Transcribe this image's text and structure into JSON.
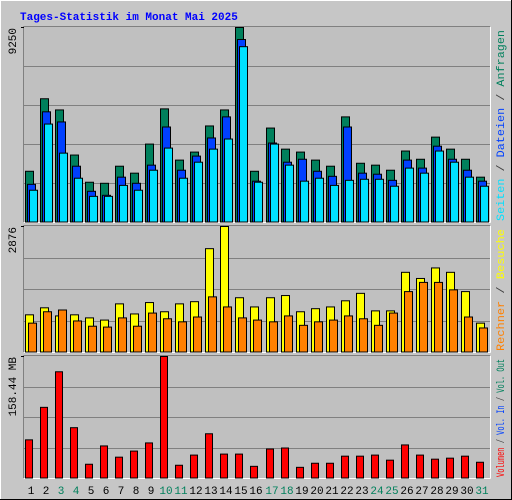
{
  "title": "Tages-Statistik im Monat Mai 2025",
  "legend_separator": " / ",
  "chart_data": [
    {
      "type": "bar",
      "ylim": [
        0,
        9250
      ],
      "yticks": [
        9250
      ],
      "grid_divisions": 5,
      "series": [
        {
          "name": "Anfragen",
          "color": "#00805c",
          "values": [
            2430,
            5870,
            5340,
            3200,
            1910,
            1860,
            2670,
            2340,
            3720,
            5390,
            2960,
            3340,
            4580,
            5340,
            9250,
            2430,
            4480,
            3480,
            3340,
            2960,
            2670,
            5010,
            2810,
            2720,
            2480,
            3390,
            3000,
            4050,
            3480,
            3000,
            2150
          ]
        },
        {
          "name": "Dateien",
          "color": "#0040ff",
          "values": [
            1810,
            5250,
            4770,
            2670,
            1480,
            1290,
            2150,
            1860,
            2720,
            4530,
            2480,
            3150,
            4010,
            5010,
            8680,
            1960,
            3770,
            2860,
            3000,
            2430,
            2190,
            4530,
            2340,
            2290,
            2000,
            2960,
            2580,
            3620,
            3000,
            2480,
            1960
          ]
        },
        {
          "name": "Seiten",
          "color": "#00e0ff",
          "values": [
            1530,
            4670,
            3290,
            2100,
            1240,
            1240,
            1760,
            1530,
            2480,
            3530,
            2100,
            2860,
            3480,
            3960,
            8340,
            1910,
            3720,
            2720,
            1960,
            2100,
            1760,
            2000,
            2050,
            2050,
            1720,
            2580,
            2340,
            3390,
            2860,
            2150,
            1720
          ]
        }
      ]
    },
    {
      "type": "bar",
      "ylim": [
        0,
        2876
      ],
      "yticks": [
        2876
      ],
      "grid_divisions": 4,
      "series": [
        {
          "name": "Besuche",
          "color": "#ffff00",
          "values": [
            860,
            1020,
            835,
            860,
            790,
            740,
            1110,
            880,
            1140,
            930,
            1110,
            1160,
            2370,
            2876,
            1250,
            1040,
            1250,
            1300,
            930,
            1000,
            1040,
            1180,
            1350,
            950,
            950,
            1830,
            1690,
            1930,
            1830,
            1390,
            670
          ]
        },
        {
          "name": "Rechner",
          "color": "#ff8000",
          "values": [
            670,
            930,
            970,
            720,
            600,
            580,
            790,
            600,
            900,
            770,
            700,
            810,
            1270,
            1040,
            790,
            740,
            700,
            835,
            620,
            700,
            740,
            835,
            770,
            620,
            900,
            1390,
            1600,
            1600,
            1430,
            810,
            560
          ]
        }
      ]
    },
    {
      "type": "bar",
      "ylim": [
        0,
        158.44
      ],
      "yticks": [
        {
          "value": 158.44,
          "label": "158.44 MB"
        }
      ],
      "grid_divisions": 4,
      "categories": [
        "1",
        "2",
        "3",
        "4",
        "5",
        "6",
        "7",
        "8",
        "9",
        "10",
        "11",
        "12",
        "13",
        "14",
        "15",
        "16",
        "17",
        "18",
        "19",
        "20",
        "21",
        "22",
        "23",
        "24",
        "25",
        "26",
        "27",
        "28",
        "29",
        "30",
        "31"
      ],
      "category_colors": [
        "#000000",
        "#000000",
        "#00805c",
        "#00805c",
        "#000000",
        "#000000",
        "#000000",
        "#000000",
        "#000000",
        "#00805c",
        "#00805c",
        "#000000",
        "#000000",
        "#000000",
        "#000000",
        "#000000",
        "#00805c",
        "#00805c",
        "#000000",
        "#000000",
        "#000000",
        "#000000",
        "#000000",
        "#00805c",
        "#00805c",
        "#000000",
        "#000000",
        "#000000",
        "#000000",
        "#000000",
        "#00805c"
      ],
      "legend_extra": [
        {
          "name": "Vol. Out",
          "color": "#00805c"
        },
        {
          "name": "Vol. In",
          "color": "#0040ff"
        }
      ],
      "series": [
        {
          "name": "Volumen",
          "color": "#ff0000",
          "values": [
            50.2,
            92.4,
            138.6,
            66.0,
            18.5,
            42.3,
            27.7,
            35.6,
            46.2,
            158.44,
            17.2,
            30.4,
            58.1,
            31.7,
            31.7,
            15.8,
            38.3,
            39.6,
            14.5,
            19.8,
            19.8,
            29.0,
            29.0,
            30.4,
            23.8,
            43.6,
            30.4,
            25.1,
            26.4,
            29.0,
            21.1
          ]
        }
      ]
    }
  ]
}
